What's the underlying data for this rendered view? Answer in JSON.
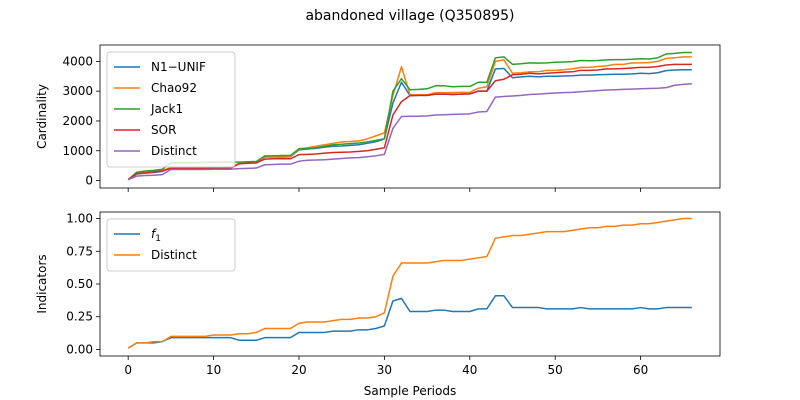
{
  "figure": {
    "title": "abandoned village (Q350895)"
  },
  "chart_data": [
    {
      "type": "line",
      "ylabel": "Cardinality",
      "xlabel": "",
      "xlim": [
        -3.3,
        69.3
      ],
      "ylim": [
        -250,
        4550
      ],
      "xticks": [
        0,
        10,
        20,
        30,
        40,
        50,
        60
      ],
      "yticks": [
        0,
        1000,
        2000,
        3000,
        4000
      ],
      "show_xtick_labels": false,
      "legend": "upper left",
      "x": [
        0,
        1,
        2,
        3,
        4,
        5,
        6,
        7,
        8,
        9,
        10,
        11,
        12,
        13,
        14,
        15,
        16,
        17,
        18,
        19,
        20,
        21,
        22,
        23,
        24,
        25,
        26,
        27,
        28,
        29,
        30,
        31,
        32,
        33,
        34,
        35,
        36,
        37,
        38,
        39,
        40,
        41,
        42,
        43,
        44,
        45,
        46,
        47,
        48,
        49,
        50,
        51,
        52,
        53,
        54,
        55,
        56,
        57,
        58,
        59,
        60,
        61,
        62,
        63,
        64,
        65,
        66
      ],
      "series": [
        {
          "name": "N1−UNIF",
          "color": "#1f77b4",
          "values": [
            30,
            220,
            250,
            270,
            310,
            420,
            420,
            420,
            420,
            420,
            430,
            430,
            430,
            580,
            600,
            610,
            790,
            790,
            790,
            800,
            1030,
            1060,
            1080,
            1120,
            1150,
            1160,
            1180,
            1200,
            1250,
            1300,
            1400,
            2600,
            3300,
            2850,
            2860,
            2860,
            2900,
            2900,
            2890,
            2900,
            2910,
            3000,
            3000,
            3750,
            3760,
            3450,
            3480,
            3500,
            3480,
            3500,
            3500,
            3510,
            3520,
            3540,
            3540,
            3550,
            3560,
            3570,
            3570,
            3580,
            3600,
            3590,
            3620,
            3690,
            3710,
            3720,
            3720
          ]
        },
        {
          "name": "Chao92",
          "color": "#ff7f0e",
          "values": [
            30,
            240,
            270,
            290,
            330,
            440,
            440,
            440,
            440,
            440,
            440,
            440,
            440,
            580,
            600,
            610,
            800,
            800,
            810,
            810,
            1050,
            1100,
            1150,
            1200,
            1250,
            1300,
            1310,
            1330,
            1400,
            1500,
            1600,
            2850,
            3820,
            2880,
            2880,
            2880,
            2950,
            2950,
            2950,
            2960,
            2960,
            3100,
            3150,
            4000,
            4050,
            3600,
            3620,
            3650,
            3650,
            3700,
            3700,
            3720,
            3750,
            3800,
            3800,
            3830,
            3850,
            3900,
            3900,
            3950,
            3950,
            3960,
            4000,
            4100,
            4120,
            4150,
            4150
          ]
        },
        {
          "name": "Jack1",
          "color": "#2ca02c",
          "values": [
            30,
            280,
            320,
            340,
            380,
            590,
            600,
            600,
            600,
            610,
            620,
            620,
            620,
            620,
            630,
            640,
            830,
            830,
            840,
            840,
            1070,
            1080,
            1100,
            1150,
            1200,
            1220,
            1240,
            1260,
            1300,
            1350,
            1400,
            3000,
            3420,
            3050,
            3060,
            3080,
            3180,
            3180,
            3150,
            3160,
            3160,
            3300,
            3300,
            4120,
            4150,
            3900,
            3920,
            3950,
            3940,
            3950,
            3970,
            3980,
            3990,
            4030,
            4020,
            4030,
            4050,
            4060,
            4060,
            4070,
            4090,
            4080,
            4120,
            4250,
            4270,
            4300,
            4300
          ]
        },
        {
          "name": "SOR",
          "color": "#d62728",
          "values": [
            30,
            230,
            260,
            290,
            320,
            410,
            410,
            410,
            410,
            410,
            410,
            410,
            420,
            560,
            580,
            590,
            720,
            730,
            730,
            730,
            870,
            880,
            890,
            920,
            940,
            950,
            960,
            980,
            1000,
            1050,
            1100,
            2200,
            2650,
            2850,
            2860,
            2860,
            2900,
            2900,
            2890,
            2900,
            2910,
            3000,
            3000,
            3350,
            3400,
            3550,
            3570,
            3600,
            3580,
            3600,
            3620,
            3640,
            3650,
            3700,
            3700,
            3710,
            3750,
            3750,
            3760,
            3780,
            3800,
            3800,
            3830,
            3880,
            3900,
            3900,
            3900
          ]
        },
        {
          "name": "Distinct",
          "color": "#9467bd",
          "values": [
            30,
            150,
            170,
            180,
            200,
            370,
            370,
            370,
            370,
            370,
            380,
            380,
            380,
            400,
            410,
            420,
            530,
            540,
            550,
            550,
            650,
            680,
            690,
            700,
            720,
            740,
            760,
            770,
            800,
            830,
            880,
            1750,
            2150,
            2160,
            2160,
            2170,
            2200,
            2210,
            2220,
            2230,
            2240,
            2300,
            2320,
            2800,
            2820,
            2840,
            2860,
            2890,
            2900,
            2920,
            2940,
            2950,
            2960,
            2980,
            3000,
            3020,
            3040,
            3050,
            3060,
            3070,
            3080,
            3090,
            3100,
            3120,
            3200,
            3230,
            3250
          ]
        }
      ]
    },
    {
      "type": "line",
      "ylabel": "Indicators",
      "xlabel": "Sample Periods",
      "xlim": [
        -3.3,
        69.3
      ],
      "ylim": [
        -0.05,
        1.05
      ],
      "xticks": [
        0,
        10,
        20,
        30,
        40,
        50,
        60
      ],
      "yticks": [
        0.0,
        0.25,
        0.5,
        0.75,
        1.0
      ],
      "ytick_labels": [
        "0.00",
        "0.25",
        "0.50",
        "0.75",
        "1.00"
      ],
      "show_xtick_labels": true,
      "legend": "upper left",
      "x": [
        0,
        1,
        2,
        3,
        4,
        5,
        6,
        7,
        8,
        9,
        10,
        11,
        12,
        13,
        14,
        15,
        16,
        17,
        18,
        19,
        20,
        21,
        22,
        23,
        24,
        25,
        26,
        27,
        28,
        29,
        30,
        31,
        32,
        33,
        34,
        35,
        36,
        37,
        38,
        39,
        40,
        41,
        42,
        43,
        44,
        45,
        46,
        47,
        48,
        49,
        50,
        51,
        52,
        53,
        54,
        55,
        56,
        57,
        58,
        59,
        60,
        61,
        62,
        63,
        64,
        65,
        66
      ],
      "series": [
        {
          "name": "f",
          "name_sub": "1",
          "color": "#1f77b4",
          "values": [
            0.01,
            0.05,
            0.05,
            0.05,
            0.06,
            0.09,
            0.09,
            0.09,
            0.09,
            0.09,
            0.09,
            0.09,
            0.09,
            0.07,
            0.07,
            0.07,
            0.09,
            0.09,
            0.09,
            0.09,
            0.13,
            0.13,
            0.13,
            0.13,
            0.14,
            0.14,
            0.14,
            0.15,
            0.15,
            0.16,
            0.18,
            0.37,
            0.39,
            0.29,
            0.29,
            0.29,
            0.3,
            0.3,
            0.29,
            0.29,
            0.29,
            0.31,
            0.31,
            0.41,
            0.41,
            0.32,
            0.32,
            0.32,
            0.32,
            0.31,
            0.31,
            0.31,
            0.31,
            0.32,
            0.31,
            0.31,
            0.31,
            0.31,
            0.31,
            0.31,
            0.32,
            0.31,
            0.31,
            0.32,
            0.32,
            0.32,
            0.32
          ]
        },
        {
          "name": "Distinct",
          "color": "#ff7f0e",
          "values": [
            0.01,
            0.05,
            0.05,
            0.06,
            0.06,
            0.1,
            0.1,
            0.1,
            0.1,
            0.1,
            0.11,
            0.11,
            0.11,
            0.12,
            0.12,
            0.13,
            0.16,
            0.16,
            0.16,
            0.16,
            0.2,
            0.21,
            0.21,
            0.21,
            0.22,
            0.23,
            0.23,
            0.24,
            0.24,
            0.25,
            0.28,
            0.56,
            0.66,
            0.66,
            0.66,
            0.66,
            0.67,
            0.68,
            0.68,
            0.68,
            0.69,
            0.7,
            0.71,
            0.85,
            0.86,
            0.87,
            0.87,
            0.88,
            0.89,
            0.9,
            0.9,
            0.9,
            0.91,
            0.92,
            0.93,
            0.93,
            0.94,
            0.94,
            0.95,
            0.95,
            0.96,
            0.96,
            0.97,
            0.98,
            0.99,
            1.0,
            1.0
          ]
        }
      ]
    }
  ]
}
